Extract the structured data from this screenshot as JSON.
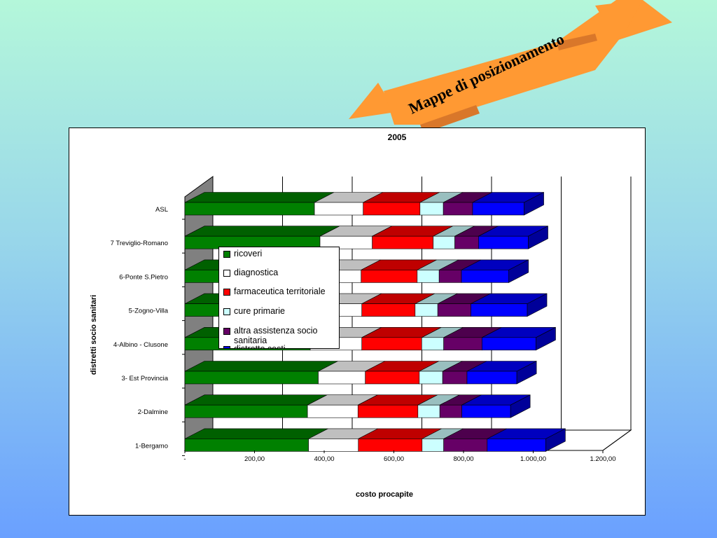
{
  "banner": {
    "title": "Mappe di posizionamento",
    "color": "#ff9933"
  },
  "chart_data": {
    "type": "bar",
    "orientation": "horizontal",
    "stacked": true,
    "three_d": true,
    "title": "2005",
    "xlabel": "costo procapite",
    "ylabel": "distretti socio sanitari",
    "xlim": [
      0,
      1200
    ],
    "xticks": [
      "-",
      "200,00",
      "400,00",
      "600,00",
      "800,00",
      "1.000,00",
      "1.200,00"
    ],
    "categories": [
      "1-Bergamo",
      "2-Dalmine",
      "3- Est Provincia",
      "4-Albino - Clusone",
      "5-Zogno-Villa",
      "6-Ponte S.Pietro",
      "7 Treviglio-Romano",
      "ASL"
    ],
    "series": [
      {
        "name": "ricoveri",
        "color": "#008000",
        "values": [
          355,
          352,
          383,
          360,
          360,
          360,
          388,
          372
        ]
      },
      {
        "name": "diagnostica",
        "color": "#ffffff",
        "values": [
          143,
          145,
          135,
          148,
          148,
          146,
          150,
          140
        ]
      },
      {
        "name": "farmaceutica territoriale",
        "color": "#ff0000",
        "values": [
          183,
          172,
          155,
          172,
          153,
          161,
          175,
          163
        ]
      },
      {
        "name": "cure primarie",
        "color": "#ccffff",
        "values": [
          62,
          63,
          67,
          63,
          65,
          63,
          62,
          67
        ]
      },
      {
        "name": "altra assistenza socio sanitaria",
        "color": "#660066",
        "values": [
          125,
          63,
          70,
          110,
          95,
          64,
          68,
          84
        ]
      },
      {
        "name": "distretto costi",
        "color": "#0000ff",
        "values": [
          168,
          140,
          143,
          155,
          162,
          136,
          143,
          148
        ]
      }
    ],
    "legend_position": "inside-left",
    "grid": true
  }
}
